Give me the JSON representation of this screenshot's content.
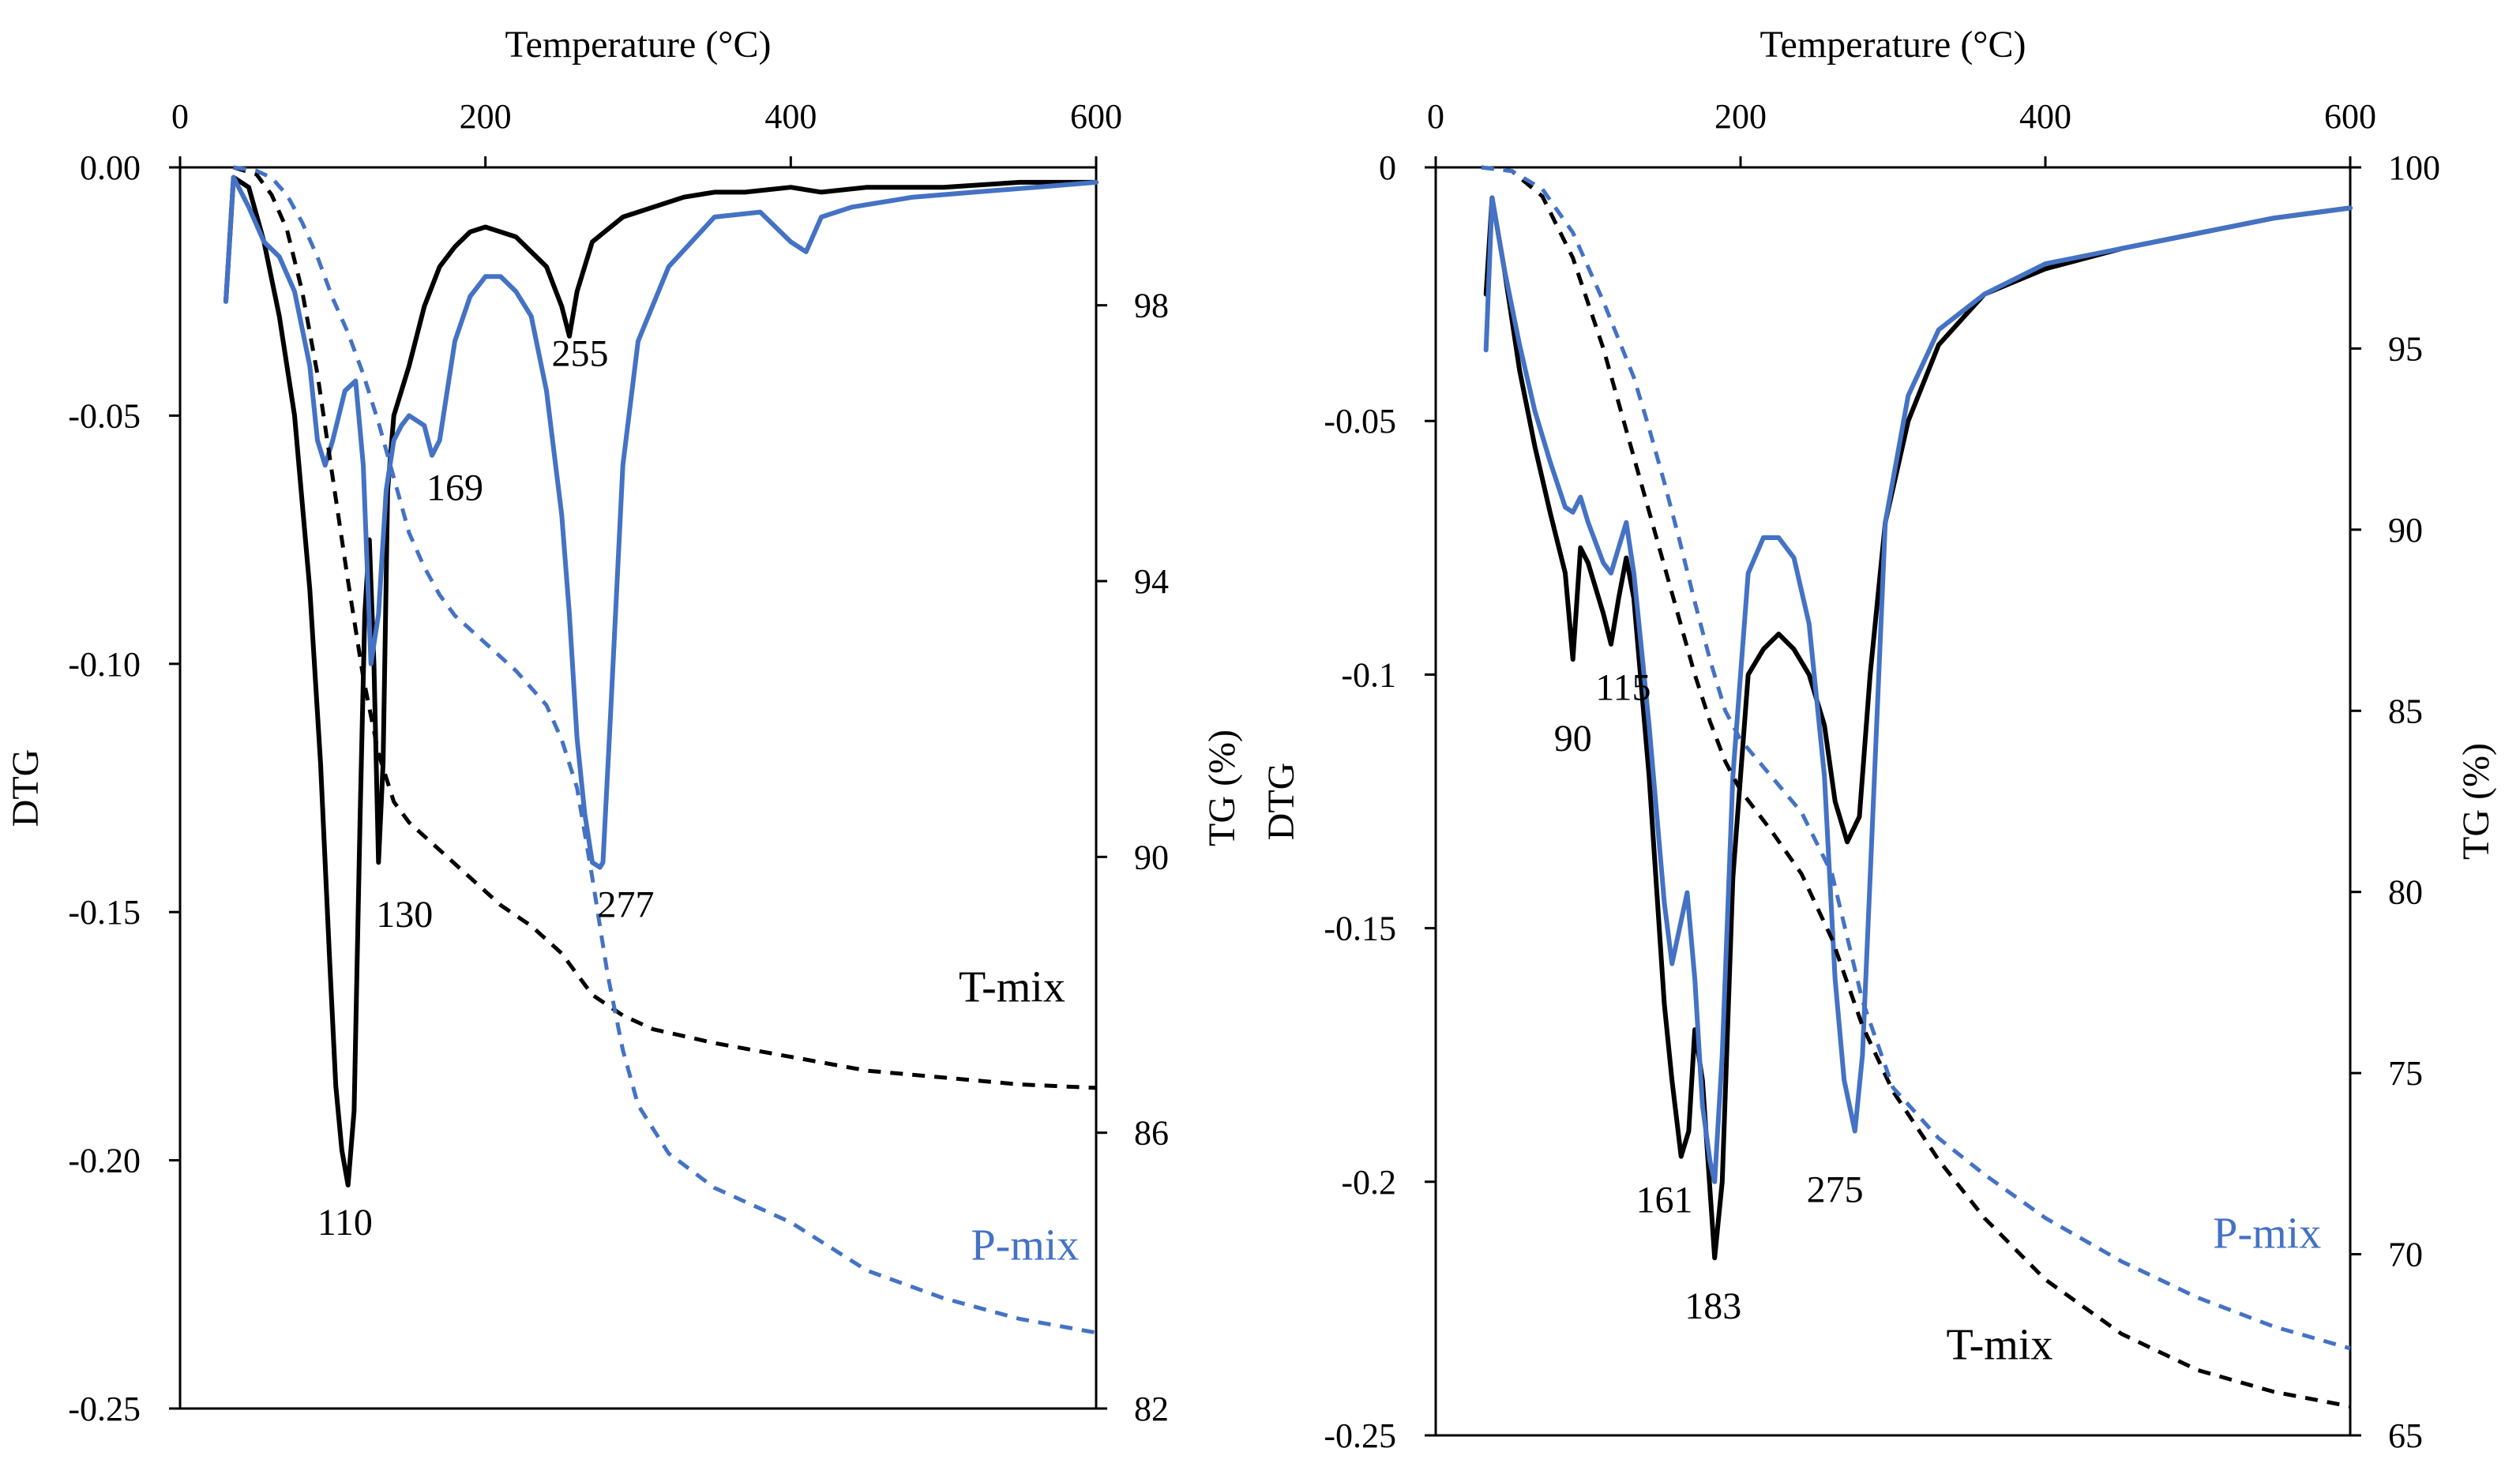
{
  "chart_data": [
    {
      "type": "line",
      "title": "",
      "xlabel": "Temperature (°C)",
      "ylabel": "DTG",
      "y2label": "TG (%)",
      "xlim": [
        0,
        600
      ],
      "ylim": [
        -0.25,
        0
      ],
      "y2lim": [
        82,
        100
      ],
      "xticks": [
        0,
        200,
        400,
        600
      ],
      "yticks": [
        0,
        -0.05,
        -0.1,
        -0.15,
        -0.2,
        -0.25
      ],
      "ytick_labels": [
        "0.00",
        "-0.05",
        "-0.10",
        "-0.15",
        "-0.20",
        "-0.25"
      ],
      "y2ticks": [
        98,
        94,
        90,
        86,
        82
      ],
      "y2tick_labels": [
        "98",
        "94",
        "90",
        "86",
        "82"
      ],
      "series": [
        {
          "name": "T-mix DTG",
          "color": "#000000",
          "dash": "solid",
          "axis": "y",
          "x": [
            30,
            35,
            45,
            55,
            65,
            75,
            85,
            92,
            98,
            102,
            106,
            110,
            114,
            118,
            121,
            124,
            127,
            130,
            133,
            136,
            140,
            150,
            160,
            170,
            180,
            190,
            200,
            220,
            240,
            250,
            255,
            260,
            270,
            290,
            310,
            330,
            350,
            370,
            400,
            420,
            450,
            500,
            550,
            600
          ],
          "y": [
            -0.027,
            -0.002,
            -0.004,
            -0.015,
            -0.03,
            -0.05,
            -0.085,
            -0.12,
            -0.16,
            -0.185,
            -0.198,
            -0.205,
            -0.19,
            -0.13,
            -0.09,
            -0.075,
            -0.1,
            -0.14,
            -0.12,
            -0.065,
            -0.05,
            -0.04,
            -0.028,
            -0.02,
            -0.016,
            -0.013,
            -0.012,
            -0.014,
            -0.02,
            -0.028,
            -0.034,
            -0.025,
            -0.015,
            -0.01,
            -0.008,
            -0.006,
            -0.005,
            -0.005,
            -0.004,
            -0.005,
            -0.004,
            -0.004,
            -0.003,
            -0.003
          ]
        },
        {
          "name": "P-mix DTG",
          "color": "#4472C4",
          "dash": "solid",
          "axis": "y",
          "x": [
            30,
            35,
            45,
            55,
            65,
            75,
            85,
            90,
            95,
            100,
            108,
            115,
            120,
            125,
            130,
            135,
            140,
            145,
            150,
            160,
            165,
            170,
            175,
            180,
            190,
            200,
            210,
            220,
            230,
            240,
            250,
            255,
            260,
            265,
            270,
            275,
            277,
            282,
            290,
            300,
            320,
            350,
            380,
            390,
            400,
            410,
            420,
            440,
            480,
            520,
            560,
            600
          ],
          "y": [
            -0.027,
            -0.002,
            -0.008,
            -0.015,
            -0.018,
            -0.025,
            -0.04,
            -0.055,
            -0.06,
            -0.055,
            -0.045,
            -0.043,
            -0.06,
            -0.1,
            -0.09,
            -0.065,
            -0.055,
            -0.052,
            -0.05,
            -0.052,
            -0.058,
            -0.055,
            -0.045,
            -0.035,
            -0.026,
            -0.022,
            -0.022,
            -0.025,
            -0.03,
            -0.045,
            -0.07,
            -0.09,
            -0.115,
            -0.13,
            -0.14,
            -0.141,
            -0.14,
            -0.11,
            -0.06,
            -0.035,
            -0.02,
            -0.01,
            -0.009,
            -0.012,
            -0.015,
            -0.017,
            -0.01,
            -0.008,
            -0.006,
            -0.005,
            -0.004,
            -0.003
          ]
        },
        {
          "name": "T-mix TG",
          "color": "#000000",
          "dash": "dashed",
          "axis": "y2",
          "x": [
            35,
            50,
            60,
            70,
            80,
            90,
            100,
            110,
            120,
            130,
            140,
            150,
            170,
            190,
            210,
            230,
            250,
            270,
            290,
            310,
            350,
            400,
            450,
            500,
            550,
            600
          ],
          "y2": [
            100,
            99.9,
            99.6,
            99.1,
            98.2,
            97.0,
            95.5,
            94.0,
            92.6,
            91.5,
            90.8,
            90.5,
            90.1,
            89.7,
            89.3,
            89.0,
            88.6,
            88.0,
            87.7,
            87.5,
            87.3,
            87.1,
            86.9,
            86.8,
            86.7,
            86.65
          ]
        },
        {
          "name": "P-mix TG",
          "color": "#4472C4",
          "dash": "dashed",
          "axis": "y2",
          "x": [
            35,
            50,
            60,
            70,
            80,
            90,
            100,
            110,
            120,
            130,
            140,
            150,
            160,
            170,
            180,
            200,
            220,
            240,
            250,
            260,
            270,
            280,
            290,
            300,
            320,
            350,
            400,
            450,
            500,
            550,
            600
          ],
          "y2": [
            100,
            99.95,
            99.85,
            99.6,
            99.2,
            98.7,
            98.1,
            97.6,
            97.0,
            96.3,
            95.5,
            94.7,
            94.2,
            93.8,
            93.5,
            93.1,
            92.7,
            92.2,
            91.7,
            91.0,
            89.7,
            88.3,
            87.2,
            86.4,
            85.7,
            85.2,
            84.7,
            84.0,
            83.6,
            83.3,
            83.1
          ]
        }
      ],
      "annotations": [
        {
          "text": "110",
          "x": 108,
          "y": -0.215
        },
        {
          "text": "130",
          "x": 147,
          "y": -0.153
        },
        {
          "text": "169",
          "x": 180,
          "y": -0.067
        },
        {
          "text": "255",
          "x": 262,
          "y": -0.04
        },
        {
          "text": "277",
          "x": 292,
          "y": -0.151
        },
        {
          "text": "T-mix",
          "x": 510,
          "y": -0.168
        },
        {
          "text": "P-mix",
          "x": 518,
          "y": -0.22
        }
      ]
    },
    {
      "type": "line",
      "title": "",
      "xlabel": "Temperature (°C)",
      "ylabel": "DTG",
      "y2label": "TG (%)",
      "xlim": [
        0,
        600
      ],
      "ylim": [
        -0.25,
        0
      ],
      "y2lim": [
        65,
        100
      ],
      "xticks": [
        0,
        200,
        400,
        600
      ],
      "yticks": [
        0,
        -0.05,
        -0.1,
        -0.15,
        -0.2,
        -0.25
      ],
      "ytick_labels": [
        "0",
        "-0.05",
        "-0.1",
        "-0.15",
        "-0.2",
        "-0.25"
      ],
      "y2ticks": [
        100,
        95,
        90,
        85,
        80,
        75,
        70,
        65
      ],
      "y2tick_labels": [
        "100",
        "95",
        "90",
        "85",
        "80",
        "75",
        "70",
        "65"
      ],
      "series": [
        {
          "name": "T-mix DTG",
          "color": "#000000",
          "dash": "solid",
          "axis": "y",
          "x": [
            33,
            37,
            45,
            55,
            65,
            75,
            85,
            90,
            95,
            100,
            110,
            115,
            120,
            125,
            130,
            140,
            150,
            155,
            161,
            166,
            170,
            175,
            183,
            188,
            195,
            205,
            215,
            225,
            235,
            245,
            255,
            262,
            270,
            278,
            285,
            295,
            310,
            330,
            360,
            400,
            450,
            500,
            550,
            600
          ],
          "y": [
            -0.025,
            -0.006,
            -0.02,
            -0.04,
            -0.055,
            -0.068,
            -0.08,
            -0.097,
            -0.075,
            -0.078,
            -0.088,
            -0.094,
            -0.085,
            -0.077,
            -0.085,
            -0.12,
            -0.165,
            -0.18,
            -0.195,
            -0.19,
            -0.17,
            -0.18,
            -0.215,
            -0.2,
            -0.14,
            -0.1,
            -0.095,
            -0.092,
            -0.095,
            -0.1,
            -0.11,
            -0.125,
            -0.133,
            -0.128,
            -0.1,
            -0.07,
            -0.05,
            -0.035,
            -0.025,
            -0.02,
            -0.016,
            -0.013,
            -0.01,
            -0.008
          ]
        },
        {
          "name": "P-mix DTG",
          "color": "#4472C4",
          "dash": "solid",
          "axis": "y",
          "x": [
            33,
            37,
            45,
            55,
            65,
            75,
            85,
            90,
            95,
            100,
            110,
            115,
            120,
            125,
            130,
            140,
            150,
            155,
            160,
            165,
            170,
            175,
            180,
            183,
            188,
            195,
            205,
            215,
            225,
            235,
            245,
            255,
            262,
            268,
            275,
            280,
            285,
            295,
            310,
            330,
            360,
            400,
            450,
            500,
            550,
            600
          ],
          "y": [
            -0.036,
            -0.006,
            -0.02,
            -0.035,
            -0.048,
            -0.058,
            -0.067,
            -0.068,
            -0.065,
            -0.07,
            -0.078,
            -0.08,
            -0.075,
            -0.07,
            -0.08,
            -0.11,
            -0.145,
            -0.157,
            -0.15,
            -0.143,
            -0.16,
            -0.185,
            -0.196,
            -0.2,
            -0.175,
            -0.12,
            -0.08,
            -0.073,
            -0.073,
            -0.077,
            -0.09,
            -0.12,
            -0.16,
            -0.18,
            -0.19,
            -0.175,
            -0.14,
            -0.07,
            -0.045,
            -0.032,
            -0.025,
            -0.019,
            -0.016,
            -0.013,
            -0.01,
            -0.008
          ]
        },
        {
          "name": "T-mix TG",
          "color": "#000000",
          "dash": "dashed",
          "axis": "y2",
          "x": [
            30,
            50,
            70,
            90,
            110,
            130,
            140,
            150,
            160,
            170,
            180,
            190,
            200,
            220,
            240,
            260,
            280,
            300,
            330,
            360,
            400,
            450,
            500,
            550,
            600
          ],
          "y2": [
            100,
            99.9,
            99.2,
            97.5,
            95.0,
            92.0,
            90.5,
            89.0,
            87.5,
            86.0,
            84.7,
            83.6,
            82.8,
            81.7,
            80.5,
            78.7,
            76.3,
            74.5,
            72.6,
            71.0,
            69.3,
            67.8,
            66.8,
            66.2,
            65.8
          ]
        },
        {
          "name": "P-mix TG",
          "color": "#4472C4",
          "dash": "dashed",
          "axis": "y2",
          "x": [
            30,
            50,
            70,
            90,
            110,
            130,
            140,
            150,
            160,
            170,
            180,
            190,
            200,
            220,
            240,
            260,
            280,
            300,
            330,
            360,
            400,
            450,
            500,
            550,
            600
          ],
          "y2": [
            100,
            99.9,
            99.4,
            98.2,
            96.3,
            94.2,
            92.8,
            91.3,
            89.7,
            88.0,
            86.4,
            85.0,
            84.2,
            83.2,
            82.2,
            80.5,
            77.0,
            74.6,
            73.2,
            72.2,
            71.0,
            69.8,
            68.8,
            68.0,
            67.4
          ]
        }
      ],
      "annotations": [
        {
          "text": "90",
          "x": 90,
          "y": -0.115
        },
        {
          "text": "115",
          "x": 123,
          "y": -0.105
        },
        {
          "text": "161",
          "x": 150,
          "y": -0.206
        },
        {
          "text": "183",
          "x": 182,
          "y": -0.227
        },
        {
          "text": "275",
          "x": 262,
          "y": -0.204
        },
        {
          "text": "P-mix",
          "x": 510,
          "y": -0.213
        },
        {
          "text": "T-mix",
          "x": 335,
          "y": -0.235
        }
      ]
    }
  ]
}
